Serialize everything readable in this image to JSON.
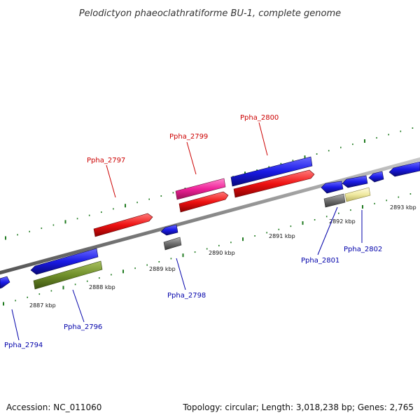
{
  "header": {
    "title": "Pelodictyon phaeoclathratiforme BU-1, complete genome"
  },
  "footer": {
    "accession": "Accession: NC_011060",
    "summary": "Topology: circular; Length: 3,018,238 bp; Genes: 2,765"
  },
  "scale_labels": [
    "2887 kbp",
    "2888 kbp",
    "2889 kbp",
    "2890 kbp",
    "2891 kbp",
    "2892 kbp",
    "2893 kbp"
  ],
  "gene_labels": [
    {
      "text": "Ppha_2794",
      "color": "#0000aa"
    },
    {
      "text": "Ppha_2796",
      "color": "#0000aa"
    },
    {
      "text": "Ppha_2797",
      "color": "#cc0000"
    },
    {
      "text": "Ppha_2798",
      "color": "#0000aa"
    },
    {
      "text": "Ppha_2799",
      "color": "#cc0000"
    },
    {
      "text": "Ppha_2800",
      "color": "#cc0000"
    },
    {
      "text": "Ppha_2801",
      "color": "#0000aa"
    },
    {
      "text": "Ppha_2802",
      "color": "#0000aa"
    }
  ],
  "colors": {
    "backbone": "#888888",
    "tick": "#1f7a1f",
    "gene_blue": "#1a1ae6",
    "gene_red": "#ee1111",
    "gene_pink": "#ee2299",
    "gene_gray": "#707070",
    "gene_olive": "#6f8f2a",
    "gene_yellow": "#f0eaa0"
  }
}
